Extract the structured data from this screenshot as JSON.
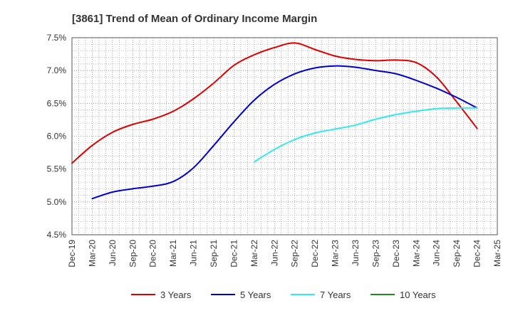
{
  "chart_data": {
    "type": "line",
    "title": "[3861]  Trend of Mean of Ordinary Income Margin",
    "xlabel": "",
    "ylabel": "",
    "x_ticks": [
      "Dec-19",
      "Mar-20",
      "Jun-20",
      "Sep-20",
      "Dec-20",
      "Mar-21",
      "Jun-21",
      "Sep-21",
      "Dec-21",
      "Mar-22",
      "Jun-22",
      "Sep-22",
      "Dec-22",
      "Mar-23",
      "Jun-23",
      "Sep-23",
      "Dec-23",
      "Mar-24",
      "Jun-24",
      "Sep-24",
      "Dec-24",
      "Mar-25"
    ],
    "y_ticks": [
      "7.5%",
      "7.0%",
      "6.5%",
      "6.0%",
      "5.5%",
      "5.0%",
      "4.5%"
    ],
    "ylim": [
      4.5,
      7.5
    ],
    "y_unit": "%",
    "grid": true,
    "legend_position": "bottom",
    "series": [
      {
        "name": "3 Years",
        "color": "#dd0000",
        "points": [
          [
            "Dec-19",
            5.59
          ],
          [
            "Mar-20",
            5.86
          ],
          [
            "Jun-20",
            6.06
          ],
          [
            "Sep-20",
            6.18
          ],
          [
            "Dec-20",
            6.26
          ],
          [
            "Mar-21",
            6.38
          ],
          [
            "Jun-21",
            6.57
          ],
          [
            "Sep-21",
            6.81
          ],
          [
            "Dec-21",
            7.08
          ],
          [
            "Mar-22",
            7.24
          ],
          [
            "Jun-22",
            7.35
          ],
          [
            "Sep-22",
            7.42
          ],
          [
            "Dec-22",
            7.32
          ],
          [
            "Mar-23",
            7.22
          ],
          [
            "Jun-23",
            7.17
          ],
          [
            "Sep-23",
            7.15
          ],
          [
            "Dec-23",
            7.16
          ],
          [
            "Mar-24",
            7.12
          ],
          [
            "Jun-24",
            6.9
          ],
          [
            "Sep-24",
            6.52
          ],
          [
            "Dec-24",
            6.12
          ]
        ]
      },
      {
        "name": "5 Years",
        "color": "#0000cc",
        "points": [
          [
            "Mar-20",
            5.05
          ],
          [
            "Jun-20",
            5.15
          ],
          [
            "Sep-20",
            5.2
          ],
          [
            "Dec-20",
            5.24
          ],
          [
            "Mar-21",
            5.31
          ],
          [
            "Jun-21",
            5.52
          ],
          [
            "Sep-21",
            5.86
          ],
          [
            "Dec-21",
            6.22
          ],
          [
            "Mar-22",
            6.55
          ],
          [
            "Jun-22",
            6.79
          ],
          [
            "Sep-22",
            6.95
          ],
          [
            "Dec-22",
            7.04
          ],
          [
            "Mar-23",
            7.07
          ],
          [
            "Jun-23",
            7.05
          ],
          [
            "Sep-23",
            7.0
          ],
          [
            "Dec-23",
            6.95
          ],
          [
            "Mar-24",
            6.85
          ],
          [
            "Jun-24",
            6.73
          ],
          [
            "Sep-24",
            6.59
          ],
          [
            "Dec-24",
            6.43
          ]
        ]
      },
      {
        "name": "7 Years",
        "color": "#33e8ee",
        "points": [
          [
            "Mar-22",
            5.61
          ],
          [
            "Jun-22",
            5.8
          ],
          [
            "Sep-22",
            5.95
          ],
          [
            "Dec-22",
            6.05
          ],
          [
            "Mar-23",
            6.11
          ],
          [
            "Jun-23",
            6.17
          ],
          [
            "Sep-23",
            6.26
          ],
          [
            "Dec-23",
            6.33
          ],
          [
            "Mar-24",
            6.38
          ],
          [
            "Jun-24",
            6.42
          ],
          [
            "Sep-24",
            6.43
          ],
          [
            "Dec-24",
            6.43
          ]
        ]
      },
      {
        "name": "10 Years",
        "color": "#228822",
        "points": []
      }
    ]
  }
}
